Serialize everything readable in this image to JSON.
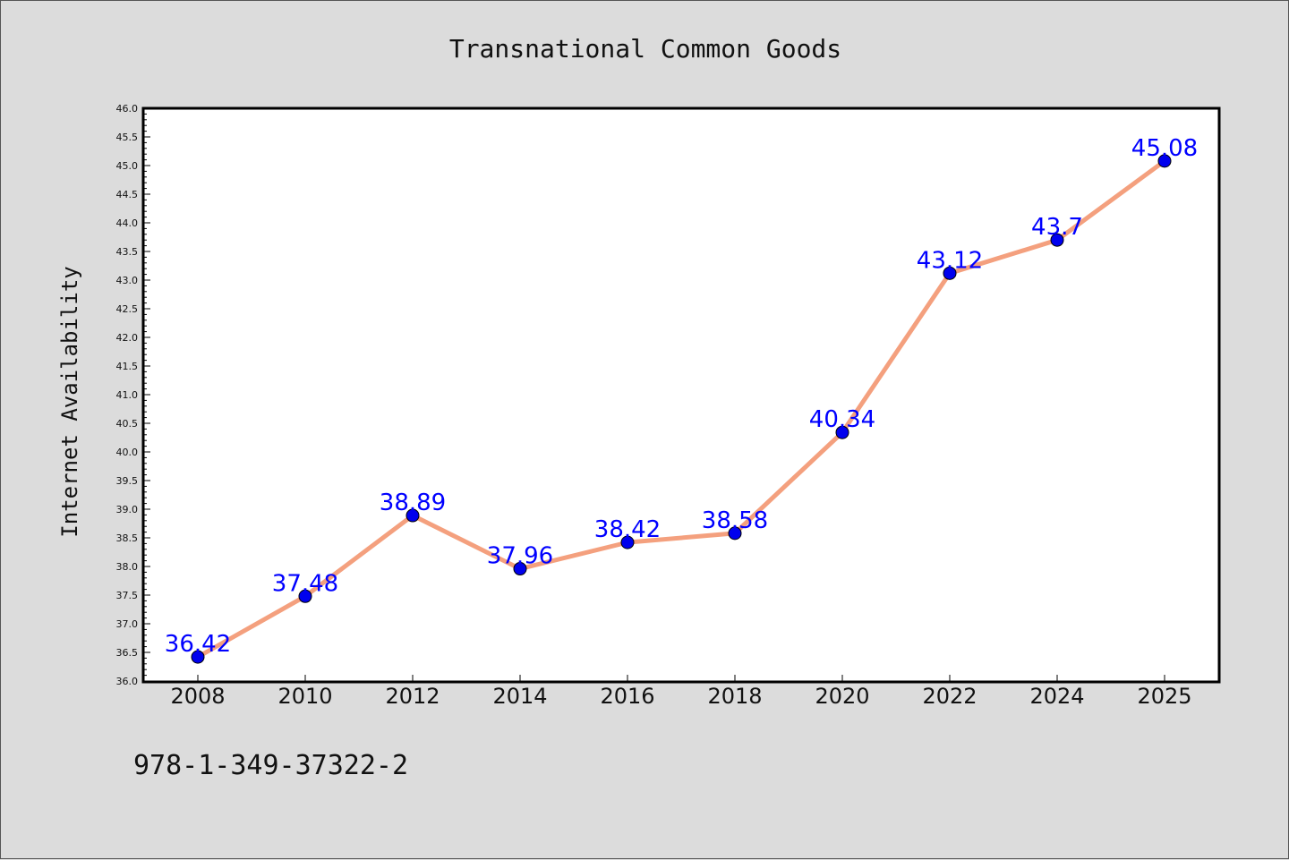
{
  "footer": {
    "code": "978-1-349-37322-2"
  },
  "colors": {
    "background": "#dcdcdc",
    "plot_background": "#ffffff",
    "line": "#f4a07e",
    "marker": "#0000ee",
    "data_label": "#0000ff"
  },
  "chart_data": {
    "type": "line",
    "title": "Transnational Common Goods",
    "xlabel": "",
    "ylabel": "Internet Availability",
    "categories": [
      "2008",
      "2010",
      "2012",
      "2014",
      "2016",
      "2018",
      "2020",
      "2022",
      "2024",
      "2025"
    ],
    "series": [
      {
        "values": [
          36.42,
          37.48,
          38.89,
          37.96,
          38.42,
          38.58,
          40.34,
          43.12,
          43.7,
          45.08
        ],
        "labels": [
          "36.42",
          "37.48",
          "38.89",
          "37.96",
          "38.42",
          "38.58",
          "40.34",
          "43.12",
          "43.7",
          "45.08"
        ]
      }
    ],
    "ylim": [
      36.0,
      46.0
    ],
    "ytick_step": 0.5,
    "grid": false,
    "legend": "none"
  }
}
